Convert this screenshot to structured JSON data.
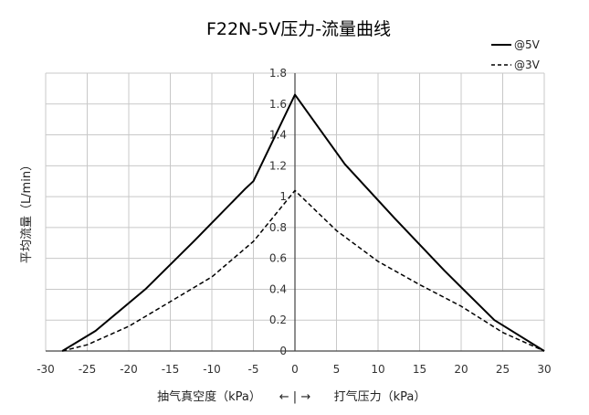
{
  "chart_data": {
    "type": "line",
    "title": "F22N-5V压力-流量曲线",
    "ylabel": "平均流量（L/min）",
    "xlabel": {
      "left": "抽气真空度（kPa）",
      "arrow": "← | →",
      "right": "打气压力（kPa）"
    },
    "xlim": [
      -30,
      30
    ],
    "ylim": [
      0,
      1.8
    ],
    "x_ticks": [
      -30,
      -25,
      -20,
      -15,
      -10,
      -5,
      0,
      5,
      10,
      15,
      20,
      25,
      30
    ],
    "y_ticks": [
      0,
      0.2,
      0.4,
      0.6,
      0.8,
      1,
      1.2,
      1.4,
      1.6,
      1.8
    ],
    "grid": true,
    "legend_position": "top-right",
    "series": [
      {
        "name": "@5V",
        "style": "solid",
        "color": "#000000",
        "x": [
          -28,
          -24,
          -18,
          -12,
          -6,
          -5,
          0,
          6,
          12,
          18,
          24,
          30
        ],
        "y": [
          0,
          0.13,
          0.4,
          0.72,
          1.05,
          1.1,
          1.66,
          1.21,
          0.86,
          0.52,
          0.2,
          0
        ]
      },
      {
        "name": "@3V",
        "style": "dashed",
        "color": "#000000",
        "x": [
          -28,
          -25,
          -20,
          -15,
          -10,
          -5,
          0,
          5,
          10,
          15,
          20,
          25,
          30
        ],
        "y": [
          0,
          0.04,
          0.16,
          0.32,
          0.48,
          0.71,
          1.04,
          0.78,
          0.58,
          0.43,
          0.29,
          0.12,
          0
        ]
      }
    ]
  }
}
